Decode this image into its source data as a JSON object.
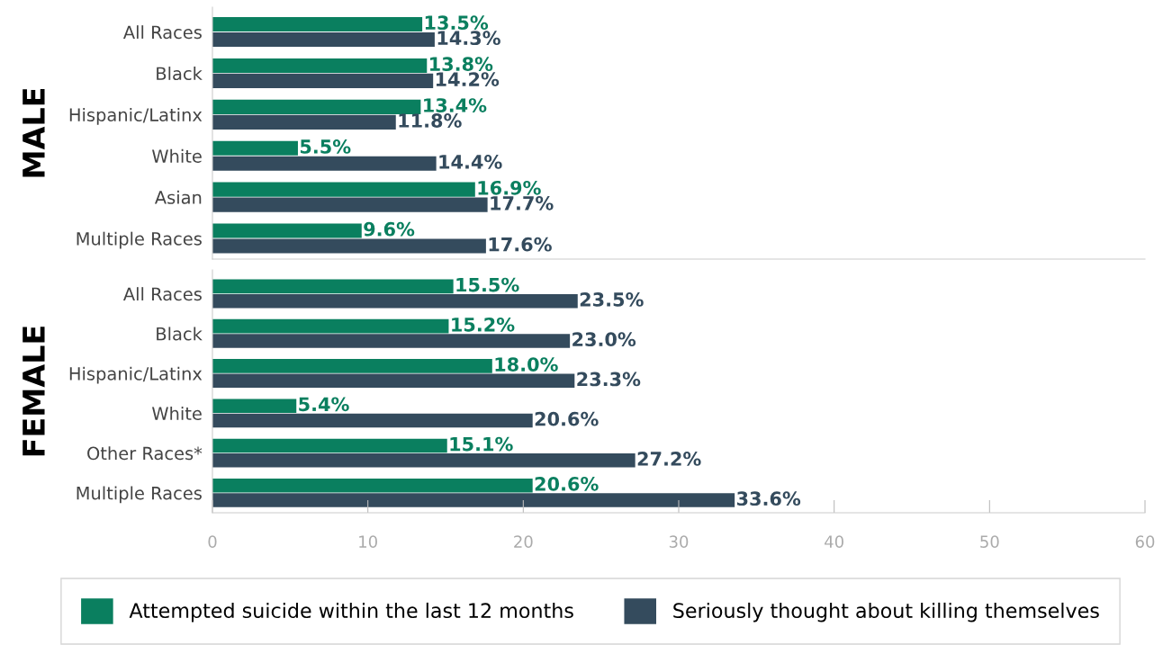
{
  "chart_data": [
    {
      "type": "bar",
      "orientation": "horizontal",
      "ylabel": "MALE",
      "categories": [
        "All Races",
        "Black",
        "Hispanic/Latinx",
        "White",
        "Asian",
        "Multiple Races"
      ],
      "series": [
        {
          "name": "Attempted suicide within the last 12 months",
          "color": "#0a7f5f",
          "values": [
            13.5,
            13.8,
            13.4,
            5.5,
            16.9,
            9.6
          ],
          "value_labels": [
            "13.5%",
            "13.8%",
            "13.4%",
            "5.5%",
            "16.9%",
            "9.6%"
          ]
        },
        {
          "name": "Seriously thought about killing themselves",
          "color": "#344b5d",
          "values": [
            14.3,
            14.2,
            11.8,
            14.4,
            17.7,
            17.6
          ],
          "value_labels": [
            "14.3%",
            "14.2%",
            "11.8%",
            "14.4%",
            "17.7%",
            "17.6%"
          ]
        }
      ],
      "xlim": [
        0,
        60
      ],
      "xticks": [
        0,
        10,
        20,
        30,
        40,
        50,
        60
      ],
      "tick_labels": "y",
      "grid": false,
      "legend": "bottom"
    },
    {
      "type": "bar",
      "orientation": "horizontal",
      "ylabel": "FEMALE",
      "categories": [
        "All Races",
        "Black",
        "Hispanic/Latinx",
        "White",
        "Other Races*",
        "Multiple Races"
      ],
      "series": [
        {
          "color": "#0a7f5f",
          "values": [
            15.5,
            15.2,
            18.0,
            5.4,
            15.1,
            20.6
          ],
          "value_labels": [
            "15.5%",
            "15.2%",
            "18.0%",
            "5.4%",
            "15.1%",
            "20.6%"
          ]
        },
        {
          "color": "#344b5d",
          "values": [
            23.5,
            23.0,
            23.3,
            20.6,
            27.2,
            33.6
          ],
          "value_labels": [
            "23.5%",
            "23.0%",
            "23.3%",
            "20.6%",
            "27.2%",
            "33.6%"
          ]
        }
      ],
      "xlim": [
        0,
        60
      ],
      "xticks": [
        0,
        10,
        20,
        30,
        40,
        50,
        60
      ],
      "grid": false
    }
  ]
}
